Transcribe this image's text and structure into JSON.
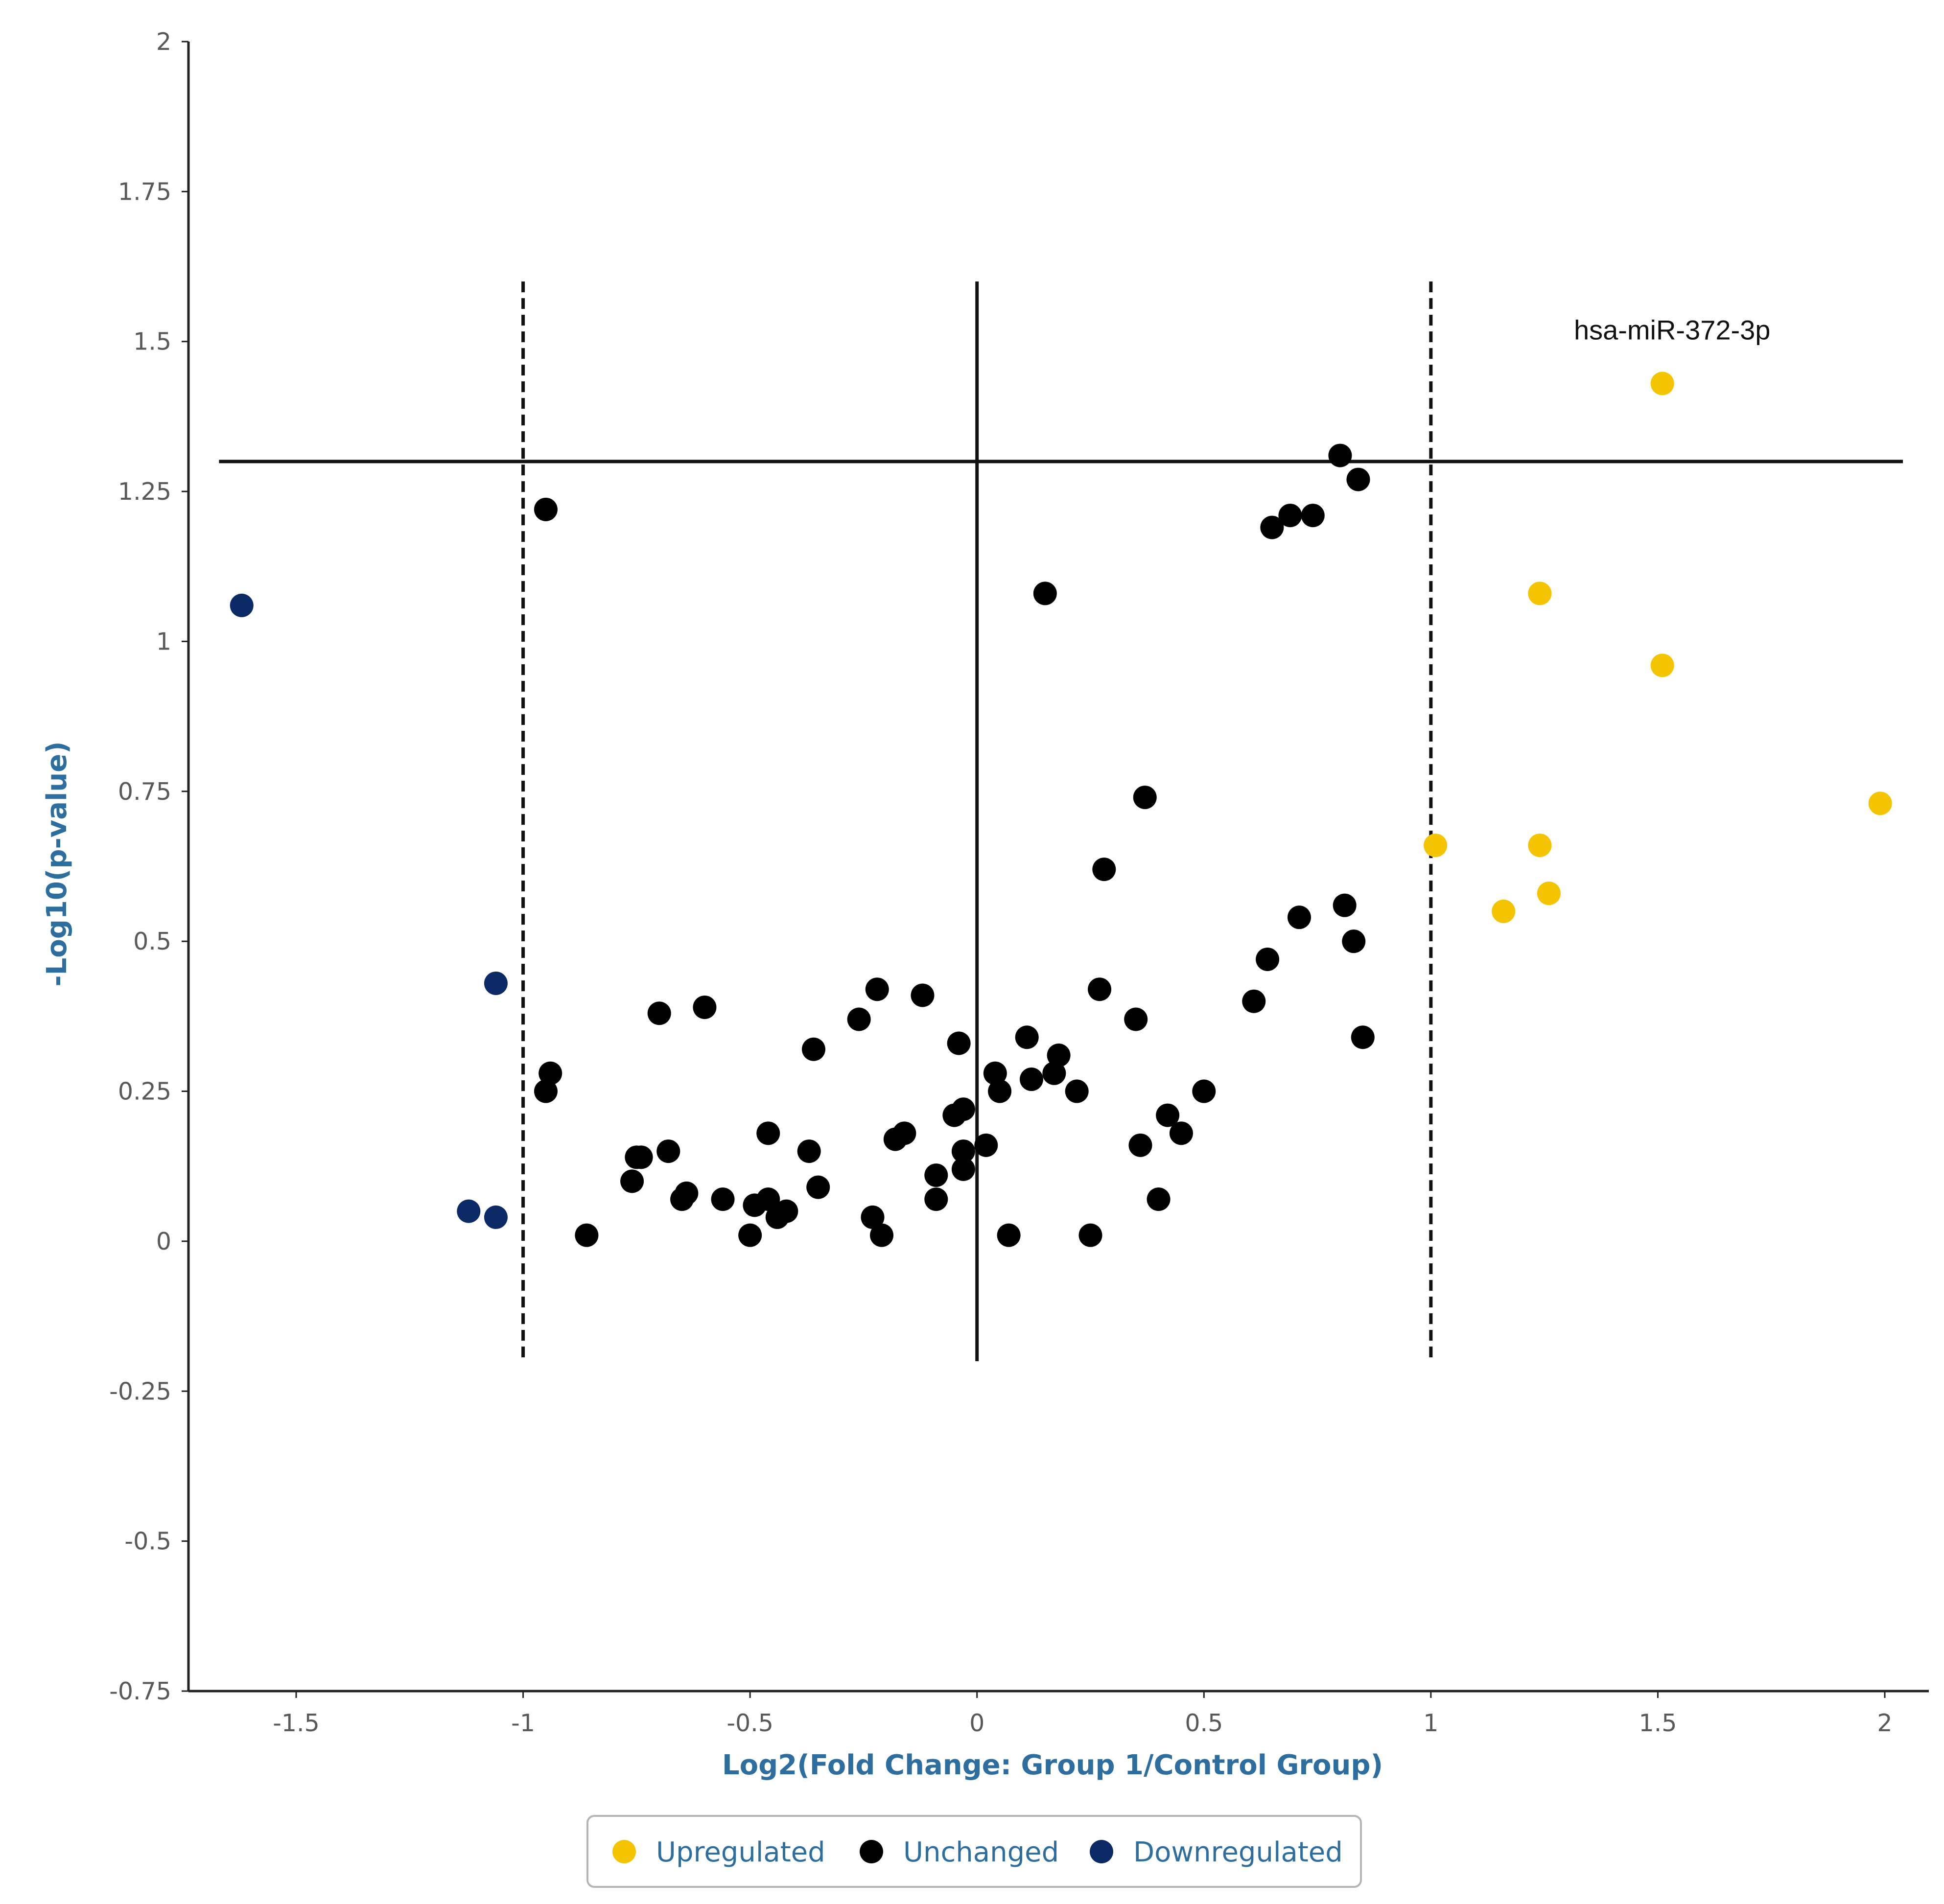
{
  "chart_data": {
    "type": "scatter",
    "title": "",
    "xlabel": "Log2(Fold Change: Group 1/Control Group)",
    "ylabel": "-Log10(p-value)",
    "xlim": [
      -1.75,
      2.1
    ],
    "ylim": [
      -0.75,
      2.0
    ],
    "x_ticks": [
      -1.5,
      -1,
      -0.5,
      0,
      0.5,
      1,
      1.5,
      2
    ],
    "x_tick_labels": [
      "-1.5",
      "-1",
      "-0.5",
      "0",
      "0.5",
      "1",
      "1.5",
      "2"
    ],
    "y_ticks": [
      2,
      1.75,
      1.5,
      1.25,
      1,
      0.75,
      0.5,
      0.25,
      0,
      -0.25,
      -0.5,
      -0.75
    ],
    "y_tick_labels": [
      "2",
      "1.75",
      "1.5",
      "1.25",
      "1",
      "0.75",
      "0.5",
      "0.25",
      "0",
      "-0.25",
      "-0.5",
      "-0.75"
    ],
    "reference_lines": {
      "fold_change_thresholds": [
        -1,
        1
      ],
      "center_x": 0,
      "p_value_threshold": 1.3,
      "vertical_extent": [
        -0.2,
        1.6
      ],
      "horizontal_extent": [
        -1.67,
        2.04
      ]
    },
    "legend": {
      "position": "bottom-center",
      "entries": [
        {
          "label": "Upregulated",
          "color": "#f5c400"
        },
        {
          "label": "Unchanged",
          "color": "#000000"
        },
        {
          "label": "Downregulated",
          "color": "#0c2a66"
        }
      ]
    },
    "annotations": [
      {
        "text": "hsa-miR-372-3p",
        "x": 1.51,
        "y": 1.43
      }
    ],
    "series": [
      {
        "name": "Upregulated",
        "color": "#f5c400",
        "points": [
          {
            "x": 1.51,
            "y": 1.43
          },
          {
            "x": 1.24,
            "y": 1.08
          },
          {
            "x": 1.51,
            "y": 0.96
          },
          {
            "x": 1.99,
            "y": 0.73
          },
          {
            "x": 1.01,
            "y": 0.66
          },
          {
            "x": 1.24,
            "y": 0.66
          },
          {
            "x": 1.26,
            "y": 0.58
          },
          {
            "x": 1.16,
            "y": 0.55
          }
        ]
      },
      {
        "name": "Unchanged",
        "color": "#000000",
        "points": [
          {
            "x": 0.8,
            "y": 1.31
          },
          {
            "x": 0.84,
            "y": 1.27
          },
          {
            "x": 0.65,
            "y": 1.19
          },
          {
            "x": 0.69,
            "y": 1.21
          },
          {
            "x": 0.74,
            "y": 1.21
          },
          {
            "x": -0.95,
            "y": 1.22
          },
          {
            "x": 0.15,
            "y": 1.08
          },
          {
            "x": 0.37,
            "y": 0.74
          },
          {
            "x": 0.28,
            "y": 0.62
          },
          {
            "x": 0.81,
            "y": 0.56
          },
          {
            "x": 0.71,
            "y": 0.54
          },
          {
            "x": 0.83,
            "y": 0.5
          },
          {
            "x": 0.64,
            "y": 0.47
          },
          {
            "x": 0.61,
            "y": 0.4
          },
          {
            "x": 0.85,
            "y": 0.34
          },
          {
            "x": 0.27,
            "y": 0.42
          },
          {
            "x": 0.35,
            "y": 0.37
          },
          {
            "x": -0.22,
            "y": 0.42
          },
          {
            "x": -0.12,
            "y": 0.41
          },
          {
            "x": -0.6,
            "y": 0.39
          },
          {
            "x": -0.7,
            "y": 0.38
          },
          {
            "x": -0.26,
            "y": 0.37
          },
          {
            "x": -0.36,
            "y": 0.32
          },
          {
            "x": -0.04,
            "y": 0.33
          },
          {
            "x": 0.11,
            "y": 0.34
          },
          {
            "x": 0.18,
            "y": 0.31
          },
          {
            "x": 0.04,
            "y": 0.28
          },
          {
            "x": 0.05,
            "y": 0.25
          },
          {
            "x": 0.12,
            "y": 0.27
          },
          {
            "x": 0.17,
            "y": 0.28
          },
          {
            "x": 0.22,
            "y": 0.25
          },
          {
            "x": 0.5,
            "y": 0.25
          },
          {
            "x": 0.42,
            "y": 0.21
          },
          {
            "x": 0.45,
            "y": 0.18
          },
          {
            "x": 0.36,
            "y": 0.16
          },
          {
            "x": -0.94,
            "y": 0.28
          },
          {
            "x": -0.95,
            "y": 0.25
          },
          {
            "x": -0.05,
            "y": 0.21
          },
          {
            "x": -0.03,
            "y": 0.22
          },
          {
            "x": -0.46,
            "y": 0.18
          },
          {
            "x": -0.16,
            "y": 0.18
          },
          {
            "x": -0.18,
            "y": 0.17
          },
          {
            "x": -0.37,
            "y": 0.15
          },
          {
            "x": -0.68,
            "y": 0.15
          },
          {
            "x": -0.74,
            "y": 0.14
          },
          {
            "x": -0.75,
            "y": 0.14
          },
          {
            "x": -0.03,
            "y": 0.15
          },
          {
            "x": 0.02,
            "y": 0.16
          },
          {
            "x": -0.03,
            "y": 0.12
          },
          {
            "x": -0.09,
            "y": 0.11
          },
          {
            "x": -0.76,
            "y": 0.1
          },
          {
            "x": -0.35,
            "y": 0.09
          },
          {
            "x": -0.64,
            "y": 0.08
          },
          {
            "x": -0.65,
            "y": 0.07
          },
          {
            "x": -0.56,
            "y": 0.07
          },
          {
            "x": -0.09,
            "y": 0.07
          },
          {
            "x": 0.4,
            "y": 0.07
          },
          {
            "x": -0.49,
            "y": 0.06
          },
          {
            "x": -0.46,
            "y": 0.07
          },
          {
            "x": -0.42,
            "y": 0.05
          },
          {
            "x": -0.44,
            "y": 0.04
          },
          {
            "x": -0.23,
            "y": 0.04
          },
          {
            "x": -0.86,
            "y": 0.01
          },
          {
            "x": -0.5,
            "y": 0.01
          },
          {
            "x": -0.21,
            "y": 0.01
          },
          {
            "x": 0.07,
            "y": 0.01
          },
          {
            "x": 0.25,
            "y": 0.01
          }
        ]
      },
      {
        "name": "Downregulated",
        "color": "#0c2a66",
        "points": [
          {
            "x": -1.62,
            "y": 1.06
          },
          {
            "x": -1.06,
            "y": 0.43
          },
          {
            "x": -1.12,
            "y": 0.05
          },
          {
            "x": -1.06,
            "y": 0.04
          }
        ]
      }
    ]
  }
}
